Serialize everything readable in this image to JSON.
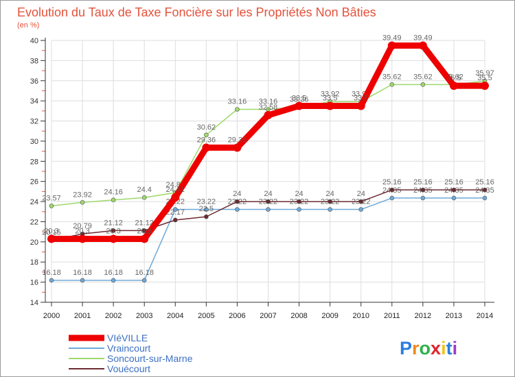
{
  "chart_data": {
    "type": "line",
    "title": "Evolution du Taux de Taxe Foncière sur les Propriétés Non Bâties",
    "ylabel": "(en %)",
    "xlabel": "",
    "ylim": [
      14,
      40
    ],
    "yticks": [
      "14",
      "16",
      "18",
      "20",
      "22",
      "24",
      "26",
      "28",
      "30",
      "32",
      "34",
      "36",
      "38",
      "40"
    ],
    "x": [
      "2000",
      "2001",
      "2002",
      "2003",
      "2004",
      "2005",
      "2006",
      "2007",
      "2008",
      "2009",
      "2010",
      "2011",
      "2012",
      "2013",
      "2014"
    ],
    "series": [
      {
        "name": "Vraincourt",
        "color": "#6fa8d8",
        "values": [
          16.18,
          16.18,
          16.18,
          16.18,
          23.22,
          23.22,
          23.22,
          23.22,
          23.22,
          23.22,
          23.22,
          24.35,
          24.35,
          24.35,
          24.35
        ],
        "labels": [
          "16.18",
          "16.18",
          "16.18",
          "16.18",
          "23.22",
          "23.22",
          "23.22",
          "23.22",
          "23.22",
          "23.22",
          "23.22",
          "24.35",
          "24.35",
          "24.35",
          "24.35"
        ]
      },
      {
        "name": "Soncourt-sur-Marne",
        "color": "#9ed86b",
        "values": [
          23.57,
          23.92,
          24.16,
          24.4,
          24.88,
          30.62,
          33.16,
          33.16,
          33.36,
          33.92,
          33.92,
          35.62,
          35.62,
          35.62,
          35.97
        ],
        "labels": [
          "23.57",
          "23.92",
          "24.16",
          "24.4",
          "24.88",
          "30.62",
          "33.16",
          "33.16",
          "33.36",
          "33.92",
          "33.92",
          "35.62",
          "35.62",
          "35.62",
          "35.97"
        ]
      },
      {
        "name": "Vouécourt",
        "color": "#6b2a31",
        "values": [
          20.15,
          20.79,
          21.12,
          21.12,
          22.17,
          22.5,
          24,
          24,
          24,
          24,
          24,
          25.16,
          25.16,
          25.16,
          25.16
        ],
        "labels": [
          "20.15",
          "20.79",
          "21.12",
          "21.12",
          "22.17",
          "22.5",
          "24",
          "24",
          "24",
          "24",
          "24",
          "25.16",
          "25.16",
          "25.16",
          "25.16"
        ]
      },
      {
        "name": "VIéVILLE",
        "color": "#ee0000",
        "values": [
          20.3,
          20.3,
          20.3,
          20.3,
          24.41,
          29.36,
          29.36,
          32.58,
          33.5,
          33.5,
          33.5,
          39.49,
          39.49,
          35.5,
          35.5
        ],
        "labels": [
          "20.3",
          "20.3",
          "20.3",
          "20.3",
          "24.41",
          "29.36",
          "29.36",
          "32.58",
          "33.5",
          "33.5",
          "33.5",
          "39.49",
          "39.49",
          "35.5",
          "35.5"
        ]
      }
    ],
    "legend": [
      "VIéVILLE",
      "Vraincourt",
      "Soncourt-sur-Marne",
      "Vouécourt"
    ],
    "legend_position": "bottom-left",
    "logo": "Proxiti",
    "logo_colors": [
      "#2b7de0",
      "#f08a1c",
      "#2bb24c",
      "#e0242c",
      "#f0c21c",
      "#2b7de0",
      "#9b3cc8"
    ]
  }
}
